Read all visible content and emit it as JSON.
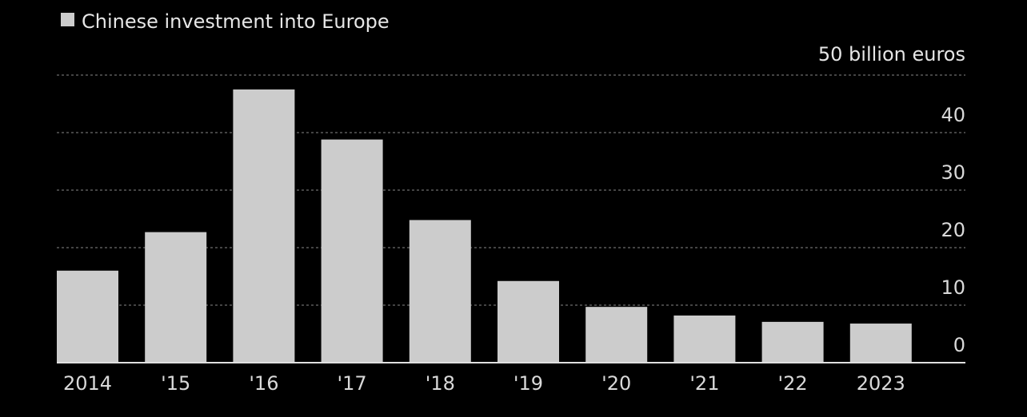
{
  "chart_data": {
    "type": "bar",
    "legend": {
      "label": "Chinese investment into Europe",
      "placement": "top-left"
    },
    "unit_label": "50 billion euros",
    "categories": [
      "2014",
      "'15",
      "'16",
      "'17",
      "'18",
      "'19",
      "'20",
      "'21",
      "'22",
      "'23"
    ],
    "category_tick_labels": [
      "2014",
      "'15",
      "'16",
      "'17",
      "'18",
      "'19",
      "'20",
      "'21",
      "'22",
      "2023"
    ],
    "series": [
      {
        "name": "Chinese investment into Europe",
        "values": [
          16.0,
          22.7,
          47.5,
          38.8,
          24.8,
          14.2,
          9.7,
          8.2,
          7.1,
          6.8
        ]
      }
    ],
    "y_ticks": [
      0,
      10,
      20,
      30,
      40,
      50
    ],
    "y_tick_labels": [
      "0",
      "10",
      "20",
      "30",
      "40",
      ""
    ],
    "ylim": [
      0,
      50
    ],
    "y_axis_position": "right",
    "grid": true,
    "xlabel": "",
    "ylabel": ""
  },
  "colors": {
    "background": "#000000",
    "bar": "#cccccc",
    "gridline": "#5a5a5a",
    "baseline": "#e0e0e0",
    "text": "#d9d9d9"
  }
}
